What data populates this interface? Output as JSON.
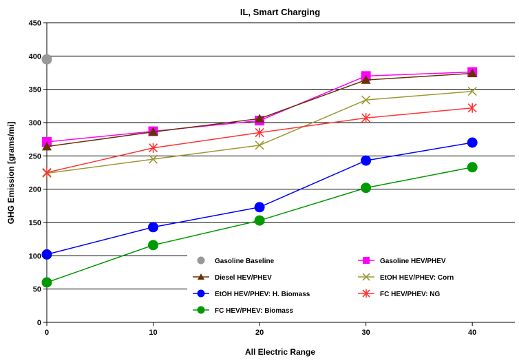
{
  "chart_data": {
    "type": "line",
    "title": "IL, Smart Charging",
    "xlabel": "All Electric Range",
    "ylabel": "GHG Emission [grams/mi]",
    "x": [
      0,
      10,
      20,
      30,
      40
    ],
    "x_ticks": [
      "0",
      "10",
      "20",
      "30",
      "40"
    ],
    "y_ticks": [
      "0",
      "50",
      "100",
      "150",
      "200",
      "250",
      "300",
      "350",
      "400",
      "450"
    ],
    "ylim": [
      0,
      450
    ],
    "xlim": [
      0,
      44
    ],
    "grid": "horizontal",
    "legend_position": "bottom-right inside plot",
    "series": [
      {
        "name": "Gasoline Baseline",
        "color": "#999999",
        "marker": "circle",
        "values": [
          395,
          null,
          null,
          null,
          null
        ]
      },
      {
        "name": "Gasoline HEV/PHEV",
        "color": "#ff00ff",
        "marker": "square",
        "values": [
          271,
          287,
          303,
          370,
          376
        ]
      },
      {
        "name": "Diesel HEV/PHEV",
        "color": "#663300",
        "marker": "triangle",
        "values": [
          264,
          286,
          306,
          364,
          374
        ]
      },
      {
        "name": "EtOH HEV/PHEV: Corn",
        "color": "#999933",
        "marker": "x",
        "values": [
          224,
          245,
          266,
          334,
          347
        ]
      },
      {
        "name": "EtOH HEV/PHEV: H. Biomass",
        "color": "#0000ff",
        "marker": "circle",
        "values": [
          102,
          143,
          173,
          243,
          270
        ]
      },
      {
        "name": "FC HEV/PHEV: NG",
        "color": "#ff3333",
        "marker": "star",
        "values": [
          225,
          262,
          285,
          307,
          322
        ]
      },
      {
        "name": "FC HEV/PHEV: Biomass",
        "color": "#009900",
        "marker": "circle",
        "values": [
          60,
          116,
          153,
          202,
          233
        ]
      }
    ]
  }
}
